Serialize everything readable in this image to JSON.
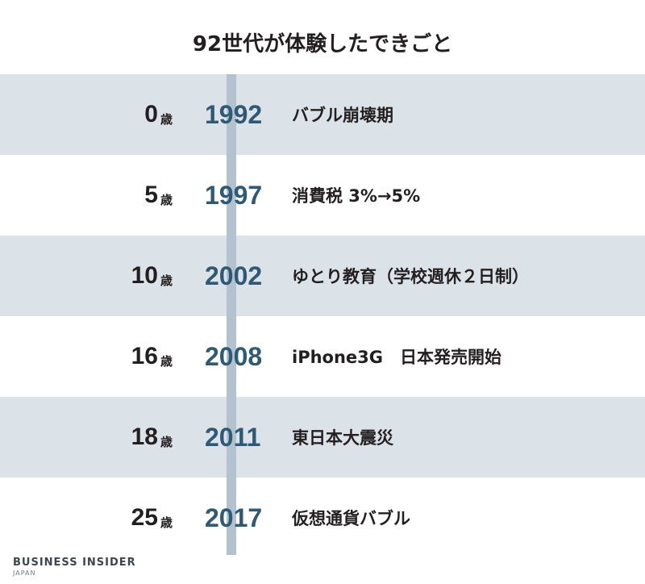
{
  "title": "92世代が体験したできごと",
  "age_unit": "歳",
  "timeline": [
    {
      "age": "0",
      "year": "1992",
      "event": "バブル崩壊期"
    },
    {
      "age": "5",
      "year": "1997",
      "event": "消費税 3%→5%"
    },
    {
      "age": "10",
      "year": "2002",
      "event": "ゆとり教育（学校週休２日制）"
    },
    {
      "age": "16",
      "year": "2008",
      "event": "iPhone3G　日本発売開始"
    },
    {
      "age": "18",
      "year": "2011",
      "event": "東日本大震災"
    },
    {
      "age": "25",
      "year": "2017",
      "event": "仮想通貨バブル"
    }
  ],
  "footer": {
    "brand": "BUSINESS INSIDER",
    "sub": "JAPAN"
  },
  "colors": {
    "shaded_row": "#dce3e8",
    "timeline_bar": "#b2c3cf",
    "year_text": "#2f5a76"
  }
}
